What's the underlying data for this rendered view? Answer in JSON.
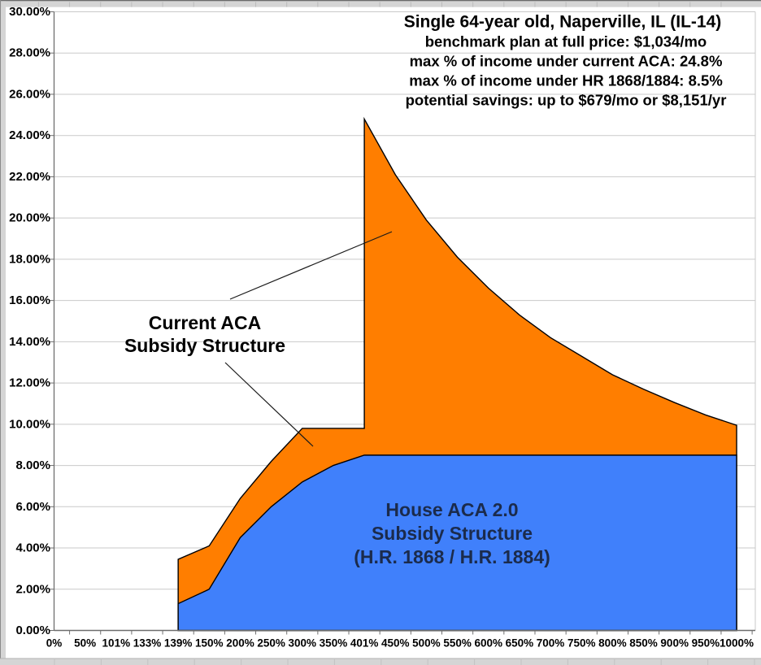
{
  "header": {
    "title": "Single 64-year old, Naperville, IL (IL-14)",
    "subtitle_lines": [
      "benchmark plan at full price: $1,034/mo",
      "max % of income under current ACA: 24.8%",
      "max % of income under HR 1868/1884: 8.5%",
      "potential savings: up to $679/mo or $8,151/yr"
    ]
  },
  "chart_data": {
    "type": "area",
    "title": "Single 64-year old, Naperville, IL (IL-14)",
    "categories": [
      "0%",
      "50%",
      "101%",
      "133%",
      "139%",
      "150%",
      "200%",
      "250%",
      "300%",
      "350%",
      "401%",
      "450%",
      "500%",
      "550%",
      "600%",
      "650%",
      "700%",
      "750%",
      "800%",
      "850%",
      "900%",
      "950%",
      "1000%"
    ],
    "series": [
      {
        "name": "Current ACA Subsidy Structure",
        "color": "#ff7e00",
        "outline": "#000000",
        "values": [
          null,
          null,
          null,
          null,
          3.45,
          4.1,
          6.4,
          8.2,
          9.8,
          9.8,
          24.8,
          22.1,
          19.9,
          18.1,
          16.6,
          15.3,
          14.2,
          13.3,
          12.4,
          11.7,
          11.05,
          10.45,
          9.95
        ],
        "cliff_at_index": 10,
        "cliff_from_value": 9.8
      },
      {
        "name": "House ACA 2.0 Subsidy Structure (H.R. 1868 / H.R. 1884)",
        "color": "#4080fb",
        "outline": "#000000",
        "values": [
          null,
          null,
          null,
          null,
          1.3,
          2.0,
          4.5,
          6.0,
          7.2,
          8.0,
          8.5,
          8.5,
          8.5,
          8.5,
          8.5,
          8.5,
          8.5,
          8.5,
          8.5,
          8.5,
          8.5,
          8.5,
          8.5
        ]
      }
    ],
    "ylim": [
      0,
      30
    ],
    "y_tick_step": 2,
    "y_tick_format": "0.00%",
    "grid": true,
    "legend": "none",
    "gridline_color": "#c9c9c9",
    "axis_color": "#6e6e6e",
    "annotations": [
      {
        "text_lines": [
          "Current ACA",
          "Subsidy Structure"
        ],
        "color": "#000000"
      },
      {
        "text_lines": [
          "House ACA 2.0",
          "Subsidy Structure",
          "(H.R. 1868 / H.R. 1884)"
        ],
        "color": "#1b2b4c"
      }
    ]
  }
}
